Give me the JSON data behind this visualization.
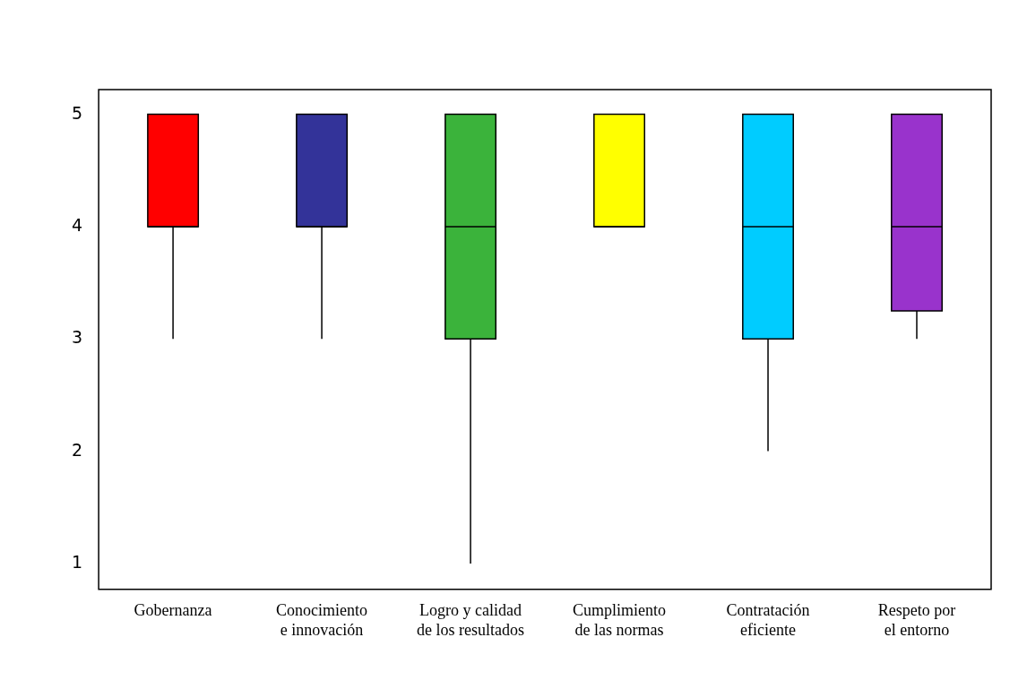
{
  "chart_data": {
    "type": "box",
    "categories": [
      "Gobernanza",
      "Conocimiento e innovación",
      "Logro y calidad de los resultados",
      "Cumplimiento de las normas",
      "Contratación eficiente",
      "Respeto por el entorno"
    ],
    "colors": [
      "#ff0000",
      "#333399",
      "#3bb33b",
      "#ffff00",
      "#00ccff",
      "#9933cc"
    ],
    "boxes": [
      {
        "low": 3,
        "q1": 4,
        "median": 4,
        "q3": 5,
        "high": 5
      },
      {
        "low": 3,
        "q1": 4,
        "median": 4,
        "q3": 5,
        "high": 5
      },
      {
        "low": 1,
        "q1": 3,
        "median": 4,
        "q3": 5,
        "high": 5
      },
      {
        "low": 4,
        "q1": 4,
        "median": 4,
        "q3": 5,
        "high": 5
      },
      {
        "low": 2,
        "q1": 3,
        "median": 4,
        "q3": 5,
        "high": 5
      },
      {
        "low": 3,
        "q1": 3.25,
        "median": 4,
        "q3": 5,
        "high": 5
      }
    ],
    "ylim": [
      0.77,
      5.22
    ],
    "yticks": [
      1,
      2,
      3,
      4,
      5
    ]
  }
}
